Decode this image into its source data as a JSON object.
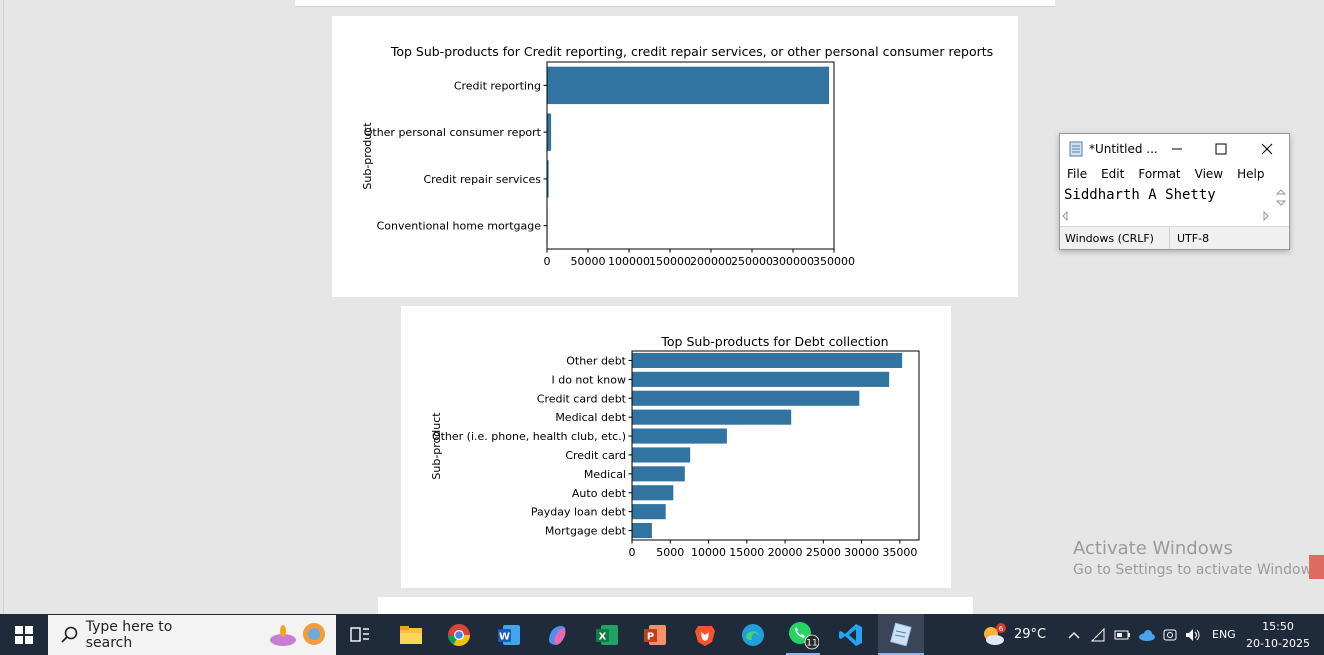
{
  "plot1": {
    "title": "Top Sub-products for Credit reporting, credit repair services, or other personal consumer reports",
    "ylabel": "Sub-product",
    "categories": [
      "Credit reporting",
      "Other personal consumer report",
      "Credit repair services",
      "Conventional home mortgage"
    ],
    "values": [
      344000,
      5000,
      2000,
      300
    ],
    "xlim": [
      0,
      350000
    ],
    "xticks": [
      "0",
      "50000",
      "100000",
      "150000",
      "200000",
      "250000",
      "300000",
      "350000"
    ]
  },
  "plot2": {
    "title": "Top Sub-products for Debt collection",
    "ylabel": "Sub-product",
    "categories": [
      "Other debt",
      "I do not know",
      "Credit card debt",
      "Medical debt",
      "Other (i.e. phone, health club, etc.)",
      "Credit card",
      "Medical",
      "Auto debt",
      "Payday loan debt",
      "Mortgage debt"
    ],
    "values": [
      35300,
      33600,
      29700,
      20800,
      12400,
      7600,
      6900,
      5400,
      4400,
      2600
    ],
    "xlim": [
      0,
      37500
    ],
    "xticks": [
      "0",
      "5000",
      "10000",
      "15000",
      "20000",
      "25000",
      "30000",
      "35000"
    ]
  },
  "chart_data": [
    {
      "type": "bar",
      "orientation": "horizontal",
      "title": "Top Sub-products for Credit reporting, credit repair services, or other personal consumer reports",
      "xlabel": "",
      "ylabel": "Sub-product",
      "categories": [
        "Credit reporting",
        "Other personal consumer report",
        "Credit repair services",
        "Conventional home mortgage"
      ],
      "values": [
        344000,
        5000,
        2000,
        300
      ],
      "xlim": [
        0,
        350000
      ],
      "grid": false
    },
    {
      "type": "bar",
      "orientation": "horizontal",
      "title": "Top Sub-products for Debt collection",
      "xlabel": "",
      "ylabel": "Sub-product",
      "categories": [
        "Other debt",
        "I do not know",
        "Credit card debt",
        "Medical debt",
        "Other (i.e. phone, health club, etc.)",
        "Credit card",
        "Medical",
        "Auto debt",
        "Payday loan debt",
        "Mortgage debt"
      ],
      "values": [
        35300,
        33600,
        29700,
        20800,
        12400,
        7600,
        6900,
        5400,
        4400,
        2600
      ],
      "xlim": [
        0,
        37500
      ],
      "grid": false
    }
  ],
  "colors": {
    "bar": "#3274a1",
    "taskbar": "#1f2a3a"
  },
  "notepad": {
    "title": "*Untitled ...",
    "menu": [
      "File",
      "Edit",
      "Format",
      "View",
      "Help"
    ],
    "content": "Siddharth A Shetty",
    "status_eol": "Windows (CRLF)",
    "status_encoding": "UTF-8",
    "icon": "notepad-icon"
  },
  "watermark": {
    "line1": "Activate Windows",
    "line2": "Go to Settings to activate Windows."
  },
  "taskbar": {
    "search_placeholder": "Type here to search",
    "weather_temp": "29°C",
    "weather_badge": "6",
    "language": "ENG",
    "time": "15:50",
    "date": "20-10-2025",
    "whatsapp_badge": "11",
    "apps": [
      "start-icon",
      "task-view-icon",
      "file-explorer-icon",
      "chrome-icon",
      "word-icon",
      "copilot-icon",
      "excel-icon",
      "powerpoint-icon",
      "brave-icon",
      "edge-icon",
      "whatsapp-icon",
      "vscode-icon",
      "notepad-icon"
    ]
  }
}
